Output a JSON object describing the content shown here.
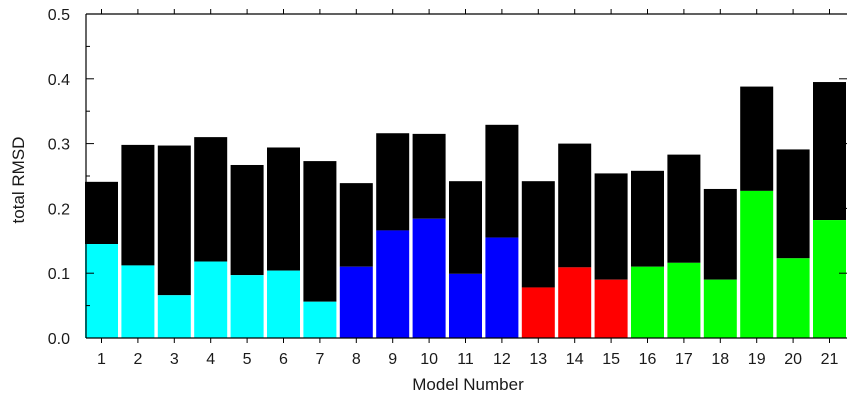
{
  "chart_data": {
    "type": "bar",
    "stacked": true,
    "title": "",
    "xlabel": "Model Number",
    "ylabel": "total RMSD",
    "ylim": [
      0,
      0.5
    ],
    "yticks": [
      "0.0",
      "0.1",
      "0.2",
      "0.3",
      "0.4",
      "0.5"
    ],
    "grid": false,
    "legend": "none",
    "categories": [
      "1",
      "2",
      "3",
      "4",
      "5",
      "6",
      "7",
      "8",
      "9",
      "10",
      "11",
      "12",
      "13",
      "14",
      "15",
      "16",
      "17",
      "18",
      "19",
      "20",
      "21"
    ],
    "lower_values": [
      0.145,
      0.112,
      0.066,
      0.118,
      0.097,
      0.104,
      0.056,
      0.11,
      0.166,
      0.184,
      0.099,
      0.155,
      0.078,
      0.109,
      0.09,
      0.11,
      0.116,
      0.09,
      0.227,
      0.123,
      0.182
    ],
    "totals": [
      0.241,
      0.298,
      0.297,
      0.31,
      0.267,
      0.294,
      0.273,
      0.239,
      0.316,
      0.315,
      0.242,
      0.329,
      0.242,
      0.3,
      0.254,
      0.258,
      0.283,
      0.23,
      0.388,
      0.291,
      0.395
    ],
    "lower_colors": [
      "#00ffff",
      "#00ffff",
      "#00ffff",
      "#00ffff",
      "#00ffff",
      "#00ffff",
      "#00ffff",
      "#0000ff",
      "#0000ff",
      "#0000ff",
      "#0000ff",
      "#0000ff",
      "#ff0000",
      "#ff0000",
      "#ff0000",
      "#00ff00",
      "#00ff00",
      "#00ff00",
      "#00ff00",
      "#00ff00",
      "#00ff00"
    ],
    "upper_color": "#000000"
  }
}
